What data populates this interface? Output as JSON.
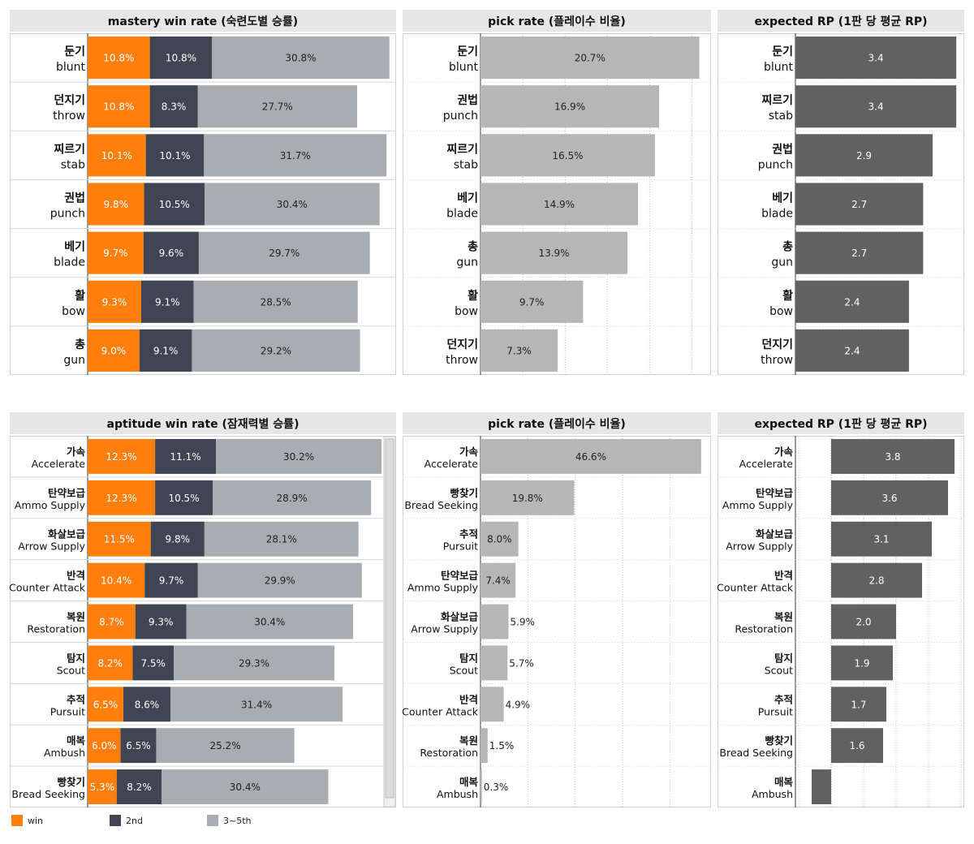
{
  "colors": {
    "win": "#ff7f0e",
    "second": "#3f4553",
    "third": "#a7adb0",
    "pick": "#b6b6b6",
    "rp": "#616161"
  },
  "legend": {
    "win": "win",
    "second": "2nd",
    "third": "3~5th"
  },
  "chart_data": [
    {
      "id": "mastery-win",
      "type": "bar",
      "stacked": true,
      "title": "mastery win rate (숙련도별 승률)",
      "xlim": [
        0,
        53
      ],
      "categories": [
        [
          "둔기",
          "blunt"
        ],
        [
          "던지기",
          "throw"
        ],
        [
          "찌르기",
          "stab"
        ],
        [
          "권법",
          "punch"
        ],
        [
          "베기",
          "blade"
        ],
        [
          "활",
          "bow"
        ],
        [
          "총",
          "gun"
        ]
      ],
      "series": [
        {
          "name": "win",
          "values": [
            10.8,
            10.8,
            10.1,
            9.8,
            9.7,
            9.3,
            9.0
          ]
        },
        {
          "name": "2nd",
          "values": [
            10.8,
            8.3,
            10.1,
            10.5,
            9.6,
            9.1,
            9.1
          ]
        },
        {
          "name": "3~5th",
          "values": [
            30.8,
            27.7,
            31.7,
            30.4,
            29.7,
            28.5,
            29.2
          ]
        }
      ],
      "value_format": "{v}%"
    },
    {
      "id": "mastery-pick",
      "type": "bar",
      "title": "pick rate (플레이수 비율)",
      "xlim": [
        0,
        21.5
      ],
      "categories": [
        [
          "둔기",
          "blunt"
        ],
        [
          "권법",
          "punch"
        ],
        [
          "찌르기",
          "stab"
        ],
        [
          "베기",
          "blade"
        ],
        [
          "총",
          "gun"
        ],
        [
          "활",
          "bow"
        ],
        [
          "던지기",
          "throw"
        ]
      ],
      "values": [
        20.7,
        16.9,
        16.5,
        14.9,
        13.9,
        9.7,
        7.3
      ],
      "value_format": "{v}%"
    },
    {
      "id": "mastery-rp",
      "type": "bar",
      "title": "expected RP (1판 당 평균 RP)",
      "xlim": [
        0,
        3.5
      ],
      "categories": [
        [
          "둔기",
          "blunt"
        ],
        [
          "찌르기",
          "stab"
        ],
        [
          "권법",
          "punch"
        ],
        [
          "베기",
          "blade"
        ],
        [
          "총",
          "gun"
        ],
        [
          "활",
          "bow"
        ],
        [
          "던지기",
          "throw"
        ]
      ],
      "values": [
        3.4,
        3.4,
        2.9,
        2.7,
        2.7,
        2.4,
        2.4
      ],
      "value_format": "{v}"
    },
    {
      "id": "aptitude-win",
      "type": "bar",
      "stacked": true,
      "title": "aptitude win rate (잠재력별 승률)",
      "xlim": [
        0,
        53
      ],
      "categories": [
        [
          "가속",
          "Accelerate"
        ],
        [
          "탄약보급",
          "Ammo Supply"
        ],
        [
          "화살보급",
          "Arrow Supply"
        ],
        [
          "반격",
          "Counter Attack"
        ],
        [
          "복원",
          "Restoration"
        ],
        [
          "탐지",
          "Scout"
        ],
        [
          "추적",
          "Pursuit"
        ],
        [
          "매복",
          "Ambush"
        ],
        [
          "빵찾기",
          "Bread Seeking"
        ]
      ],
      "series": [
        {
          "name": "win",
          "values": [
            12.3,
            12.3,
            11.5,
            10.4,
            8.7,
            8.2,
            6.5,
            6.0,
            5.3
          ]
        },
        {
          "name": "2nd",
          "values": [
            11.1,
            10.5,
            9.8,
            9.7,
            9.3,
            7.5,
            8.6,
            6.5,
            8.2
          ]
        },
        {
          "name": "3~5th",
          "values": [
            30.2,
            28.9,
            28.1,
            29.9,
            30.4,
            29.3,
            31.4,
            25.2,
            30.4
          ]
        }
      ],
      "value_format": "{v}%"
    },
    {
      "id": "aptitude-pick",
      "type": "bar",
      "title": "pick rate (플레이수 비율)",
      "xlim": [
        0,
        48
      ],
      "categories": [
        [
          "가속",
          "Accelerate"
        ],
        [
          "빵찾기",
          "Bread Seeking"
        ],
        [
          "추적",
          "Pursuit"
        ],
        [
          "탄약보급",
          "Ammo Supply"
        ],
        [
          "화살보급",
          "Arrow Supply"
        ],
        [
          "탐지",
          "Scout"
        ],
        [
          "반격",
          "Counter Attack"
        ],
        [
          "복원",
          "Restoration"
        ],
        [
          "매복",
          "Ambush"
        ]
      ],
      "values": [
        46.6,
        19.8,
        8.0,
        7.4,
        5.9,
        5.7,
        4.9,
        1.5,
        0.3
      ],
      "value_format": "{v}%"
    },
    {
      "id": "aptitude-rp",
      "type": "bar",
      "title": "expected RP (1판 당 평균 RP)",
      "xlim": [
        -1.1,
        4.0
      ],
      "categories": [
        [
          "가속",
          "Accelerate"
        ],
        [
          "탄약보급",
          "Ammo Supply"
        ],
        [
          "화살보급",
          "Arrow Supply"
        ],
        [
          "반격",
          "Counter Attack"
        ],
        [
          "복원",
          "Restoration"
        ],
        [
          "탐지",
          "Scout"
        ],
        [
          "추적",
          "Pursuit"
        ],
        [
          "빵찾기",
          "Bread Seeking"
        ],
        [
          "매복",
          "Ambush"
        ]
      ],
      "values": [
        3.8,
        3.6,
        3.1,
        2.8,
        2.0,
        1.9,
        1.7,
        1.6,
        -0.6
      ],
      "value_format": "{v}"
    }
  ]
}
